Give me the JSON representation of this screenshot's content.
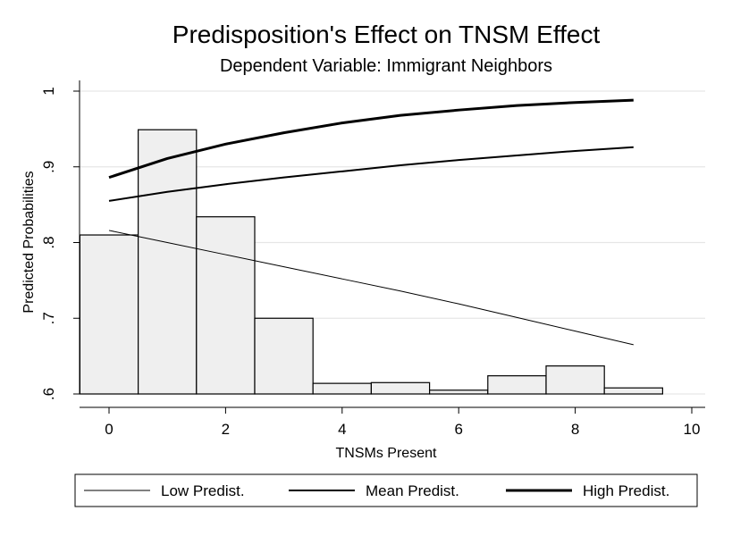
{
  "chart_data": {
    "type": "bar",
    "title": "Predisposition's Effect on TNSM Effect",
    "subtitle": "Dependent Variable: Immigrant Neighbors",
    "xlabel": "TNSMs Present",
    "ylabel": "Predicted Probabilities",
    "xlim": [
      -0.5,
      10
    ],
    "ylim": [
      0.6,
      1.0
    ],
    "x_ticks": [
      0,
      2,
      4,
      6,
      8,
      10
    ],
    "y_ticks": [
      0.6,
      0.7,
      0.8,
      0.9,
      1.0
    ],
    "y_tick_labels": [
      ".6",
      ".7",
      ".8",
      ".9",
      "1"
    ],
    "grid": true,
    "histogram": {
      "bin_centers": [
        0,
        1,
        2,
        3,
        4,
        5,
        6,
        7,
        8,
        9
      ],
      "bin_width": 1,
      "heights": [
        0.81,
        0.949,
        0.834,
        0.7,
        0.614,
        0.615,
        0.605,
        0.624,
        0.637,
        0.608
      ],
      "fill": "#efefef",
      "stroke": "#000000"
    },
    "series": [
      {
        "name": "Low Predist.",
        "stroke_weight": "thin",
        "x": [
          0,
          1,
          2,
          3,
          4,
          5,
          6,
          7,
          8,
          9
        ],
        "y": [
          0.816,
          0.8,
          0.784,
          0.768,
          0.752,
          0.736,
          0.719,
          0.701,
          0.683,
          0.665
        ]
      },
      {
        "name": "Mean Predist.",
        "stroke_weight": "medium",
        "x": [
          0,
          1,
          2,
          3,
          4,
          5,
          6,
          7,
          8,
          9
        ],
        "y": [
          0.855,
          0.867,
          0.877,
          0.886,
          0.894,
          0.902,
          0.909,
          0.915,
          0.921,
          0.926
        ]
      },
      {
        "name": "High Predist.",
        "stroke_weight": "thick",
        "x": [
          0,
          1,
          2,
          3,
          4,
          5,
          6,
          7,
          8,
          9
        ],
        "y": [
          0.886,
          0.911,
          0.93,
          0.945,
          0.958,
          0.968,
          0.975,
          0.981,
          0.985,
          0.988
        ]
      }
    ],
    "legend_position": "bottom"
  }
}
